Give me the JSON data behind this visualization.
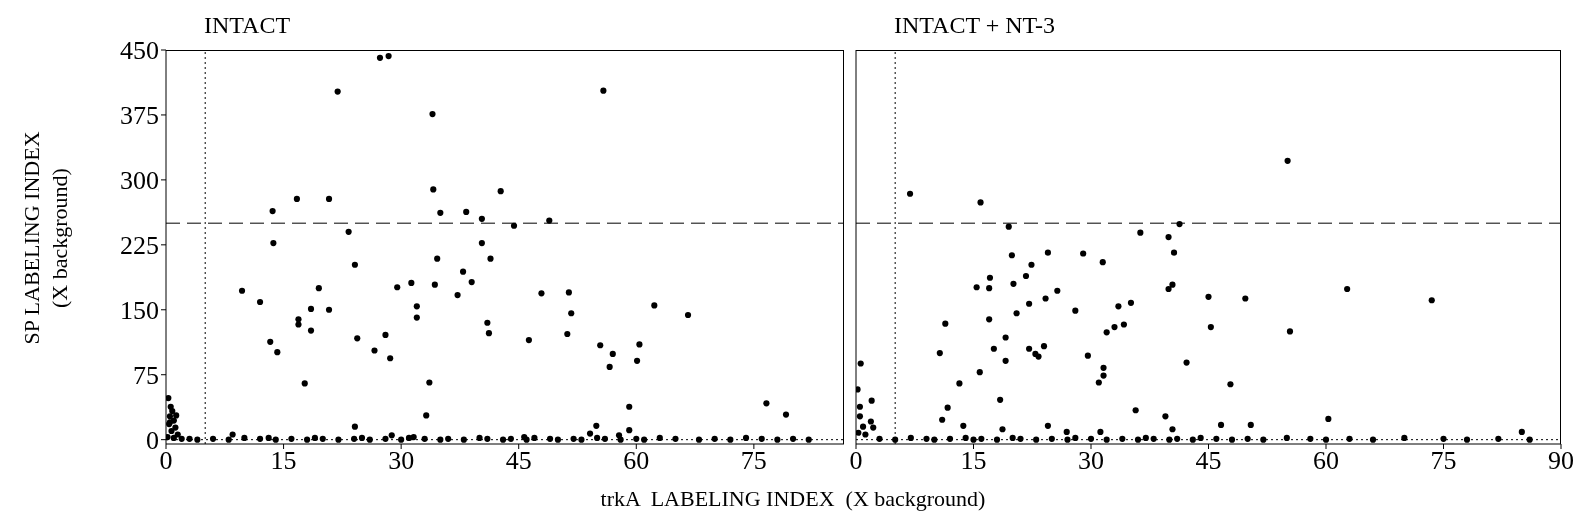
{
  "chart_data": [
    {
      "type": "scatter",
      "title": "INTACT",
      "xlabel": "trkA  LABELING INDEX  (X background)",
      "ylabel": "SP LABELING INDEX\n(X background)",
      "color": "#000000",
      "marker": "circle",
      "x": [
        27.3,
        28.4,
        21.9,
        55.8,
        34.0,
        34.1,
        42.7,
        13.6,
        16.7,
        20.8,
        35.0,
        38.3,
        40.3,
        48.9,
        44.4,
        23.3,
        13.7,
        40.3,
        34.6,
        41.4,
        24.1,
        9.7,
        12.0,
        13.3,
        14.2,
        16.9,
        16.9,
        18.5,
        18.5,
        19.5,
        20.8,
        17.7,
        24.4,
        26.6,
        28.0,
        28.6,
        29.5,
        31.3,
        32.0,
        32.0,
        33.6,
        33.2,
        34.3,
        37.2,
        37.9,
        39.0,
        41.0,
        41.2,
        46.3,
        47.9,
        51.2,
        51.4,
        51.7,
        55.4,
        56.6,
        57.0,
        60.1,
        60.4,
        62.3,
        66.6,
        59.1,
        76.6,
        79.1,
        54.9,
        24.1,
        54.1,
        57.8,
        59.1,
        8.5,
        13.1,
        28.8,
        31.6,
        45.7,
        0.3,
        0.6,
        0.8,
        0.5,
        1.0,
        0.4,
        1.2,
        0.7,
        1.5,
        0.2,
        1.0,
        2.0,
        0.5,
        1.3,
        3,
        4,
        6,
        8,
        10,
        12,
        14,
        16,
        18,
        19,
        20,
        22,
        24,
        25,
        26,
        28,
        30,
        31,
        33,
        35,
        36,
        38,
        40,
        41,
        43,
        44,
        46,
        47,
        49,
        50,
        52,
        53,
        55,
        56,
        58,
        60,
        61,
        63,
        65,
        68,
        70,
        72,
        74,
        76,
        78,
        80,
        82
      ],
      "values": [
        441,
        443,
        402,
        403,
        376,
        289,
        287,
        264,
        278,
        278,
        262,
        263,
        255,
        253,
        247,
        240,
        227,
        227,
        209,
        209,
        202,
        172,
        159,
        113,
        101,
        139,
        133,
        151,
        126,
        175,
        150,
        65,
        117,
        103,
        121,
        94,
        176,
        181,
        154,
        141,
        66,
        28,
        179,
        167,
        194,
        182,
        135,
        123,
        115,
        169,
        122,
        170,
        146,
        109,
        84,
        99,
        91,
        110,
        155,
        144,
        38,
        42,
        29,
        16,
        15,
        7,
        5,
        11,
        6,
        2,
        5,
        3,
        3,
        48,
        38,
        33,
        27,
        22,
        18,
        14,
        10,
        6,
        3,
        2,
        1,
        20,
        28,
        1,
        0,
        1,
        0,
        2,
        1,
        0,
        1,
        0,
        2,
        1,
        0,
        1,
        2,
        0,
        1,
        0,
        2,
        1,
        0,
        1,
        0,
        2,
        1,
        0,
        1,
        0,
        2,
        1,
        0,
        1,
        0,
        2,
        1,
        0,
        1,
        0,
        2,
        1,
        0,
        1,
        0,
        2,
        1,
        0,
        1,
        0
      ],
      "xlim": [
        0,
        86.5
      ],
      "ylim": [
        -5,
        450
      ],
      "xticks": [
        0,
        15,
        30,
        45,
        60,
        75
      ],
      "yticks": [
        0,
        75,
        150,
        225,
        300,
        375,
        450
      ],
      "ref_lines": [
        {
          "axis": "x",
          "value": 5,
          "line_style": "dotted"
        },
        {
          "axis": "y",
          "value": 250,
          "line_style": "dashed"
        },
        {
          "axis": "y",
          "value": 0,
          "line_style": "dotted"
        }
      ]
    },
    {
      "type": "scatter",
      "title": "INTACT + NT-3",
      "color": "#000000",
      "marker": "circle",
      "tick_labels": "x",
      "x": [
        55.1,
        6.9,
        15.9,
        19.5,
        36.3,
        39.9,
        41.3,
        19.9,
        24.5,
        29.0,
        40.6,
        31.5,
        22.4,
        21.7,
        17.1,
        20.1,
        15.4,
        17.0,
        25.7,
        24.2,
        22.1,
        28.0,
        20.5,
        33.5,
        35.1,
        39.9,
        40.4,
        45.0,
        49.7,
        62.7,
        73.5,
        11.4,
        17.0,
        34.2,
        33.0,
        32.0,
        45.3,
        55.4,
        19.1,
        17.6,
        22.1,
        24.0,
        22.9,
        23.3,
        10.7,
        19.1,
        29.6,
        42.2,
        31.6,
        31.6,
        31.0,
        15.8,
        13.2,
        47.8,
        18.4,
        35.7,
        39.5,
        60.3,
        11.7,
        11.0,
        13.7,
        18.7,
        24.5,
        40.4,
        46.6,
        50.4,
        26.9,
        31.2,
        85.0,
        0.6,
        0.2,
        2.0,
        1.9,
        2.2,
        0.5,
        0.5,
        0.9,
        0.3,
        1.2,
        3,
        5,
        7,
        9,
        10,
        12,
        14,
        15,
        16,
        18,
        20,
        21,
        23,
        25,
        27,
        28,
        30,
        32,
        34,
        36,
        37,
        38,
        40,
        41,
        43,
        44,
        46,
        48,
        50,
        52,
        55,
        58,
        60,
        63,
        66,
        70,
        75,
        78,
        82,
        86
      ],
      "values": [
        322,
        284,
        274,
        246,
        239,
        234,
        249,
        213,
        216,
        215,
        216,
        205,
        202,
        189,
        187,
        180,
        176,
        175,
        172,
        163,
        157,
        149,
        146,
        154,
        158,
        174,
        179,
        165,
        163,
        174,
        161,
        134,
        139,
        133,
        130,
        124,
        130,
        125,
        118,
        105,
        105,
        108,
        99,
        96,
        100,
        91,
        97,
        89,
        83,
        74,
        66,
        78,
        65,
        64,
        46,
        34,
        27,
        24,
        37,
        23,
        16,
        12,
        16,
        12,
        17,
        17,
        9,
        9,
        9,
        88,
        58,
        45,
        21,
        14,
        38,
        27,
        15,
        8,
        6,
        1,
        0,
        2,
        1,
        0,
        1,
        2,
        0,
        1,
        0,
        2,
        1,
        0,
        1,
        0,
        2,
        1,
        0,
        1,
        0,
        2,
        1,
        0,
        1,
        0,
        2,
        1,
        0,
        1,
        0,
        2,
        1,
        0,
        1,
        0,
        2,
        1,
        0,
        1,
        0
      ],
      "xlim": [
        0,
        90
      ],
      "ylim": [
        -5,
        450
      ],
      "xticks": [
        0,
        15,
        30,
        45,
        60,
        75,
        90
      ],
      "yticks": [
        0,
        75,
        150,
        225,
        300,
        375,
        450
      ],
      "ref_lines": [
        {
          "axis": "x",
          "value": 5,
          "line_style": "dotted"
        },
        {
          "axis": "y",
          "value": 250,
          "line_style": "dashed"
        },
        {
          "axis": "y",
          "value": 0,
          "line_style": "dotted"
        }
      ]
    }
  ]
}
